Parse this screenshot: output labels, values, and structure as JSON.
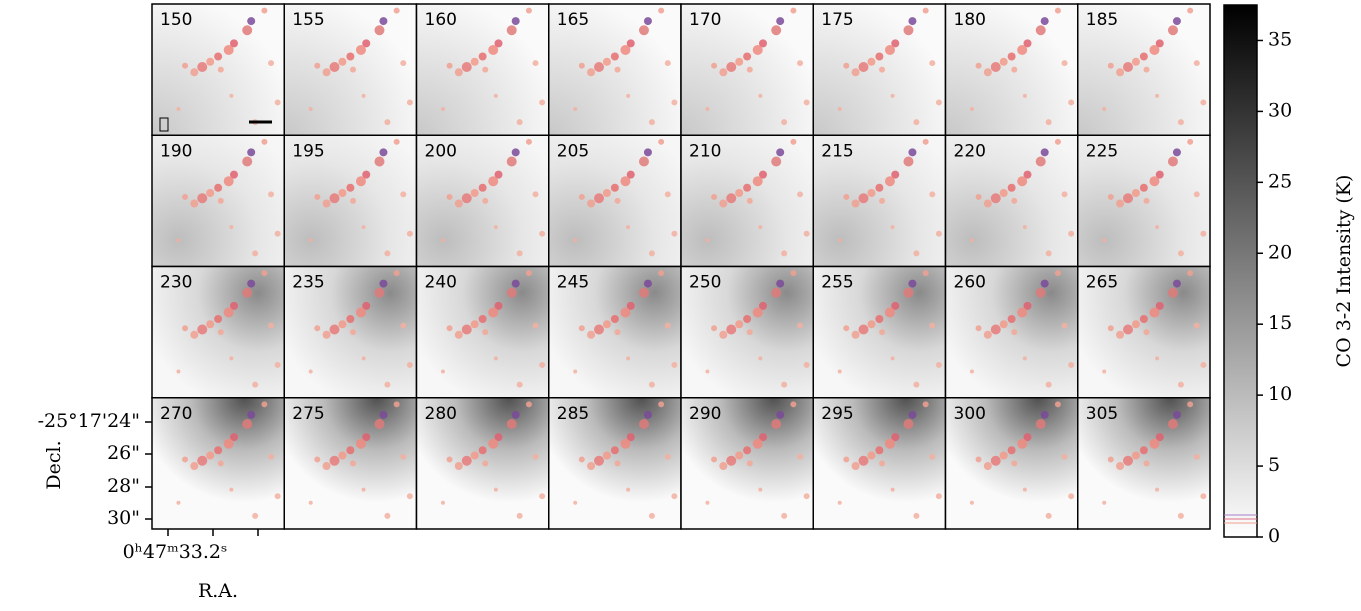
{
  "chart_data": {
    "type": "channel-map",
    "channels": [
      150,
      155,
      160,
      165,
      170,
      175,
      180,
      185,
      190,
      195,
      200,
      205,
      210,
      215,
      220,
      225,
      230,
      235,
      240,
      245,
      250,
      255,
      260,
      265,
      270,
      275,
      280,
      285,
      290,
      295,
      300,
      305
    ],
    "colorbar_label": "CO 3-2 Intensity (K)",
    "clim": [
      0,
      37.5
    ],
    "cticks": [
      0,
      5,
      10,
      15,
      20,
      25,
      30,
      35
    ],
    "dec_label": "Decl.",
    "dec_ticks": [
      "-25°17'24\"",
      "26\"",
      "28\"",
      "30\""
    ],
    "ra_label": "R.A.",
    "ra_tick": "0ʰ47ᵐ33.2ˢ"
  }
}
